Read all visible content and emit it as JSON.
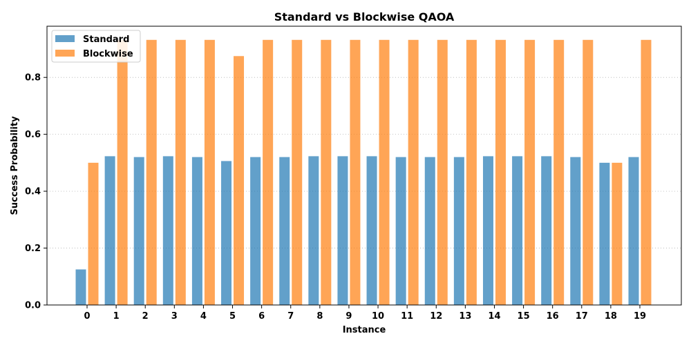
{
  "chart_data": {
    "type": "bar",
    "title": "Standard vs Blockwise QAOA",
    "xlabel": "Instance",
    "ylabel": "Success Probability",
    "categories": [
      "0",
      "1",
      "2",
      "3",
      "4",
      "5",
      "6",
      "7",
      "8",
      "9",
      "10",
      "11",
      "12",
      "13",
      "14",
      "15",
      "16",
      "17",
      "18",
      "19"
    ],
    "series": [
      {
        "name": "Standard",
        "color": "#1f77b4",
        "values": [
          0.125,
          0.523,
          0.52,
          0.523,
          0.52,
          0.506,
          0.52,
          0.52,
          0.523,
          0.523,
          0.523,
          0.52,
          0.52,
          0.52,
          0.523,
          0.523,
          0.523,
          0.52,
          0.5,
          0.52
        ]
      },
      {
        "name": "Blockwise",
        "color": "#ff7f0e",
        "values": [
          0.5,
          0.932,
          0.932,
          0.932,
          0.932,
          0.875,
          0.932,
          0.932,
          0.932,
          0.932,
          0.932,
          0.932,
          0.932,
          0.932,
          0.932,
          0.932,
          0.932,
          0.932,
          0.5,
          0.932
        ]
      }
    ],
    "ylim": [
      0,
      0.98
    ],
    "yticks": [
      0.0,
      0.2,
      0.4,
      0.6,
      0.8
    ],
    "ytick_labels": [
      "0.0",
      "0.2",
      "0.4",
      "0.6",
      "0.8"
    ],
    "grid": "y-dotted",
    "legend_position": "top-left"
  }
}
